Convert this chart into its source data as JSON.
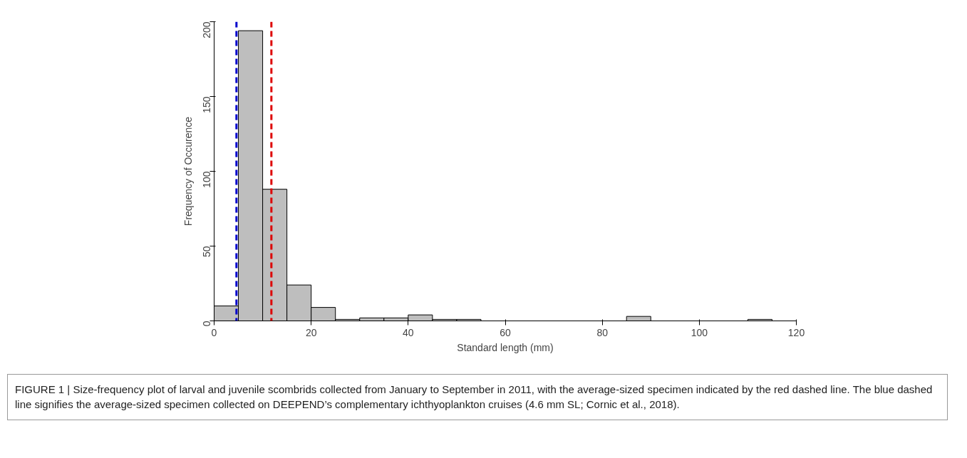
{
  "chart_data": {
    "type": "histogram",
    "bins": [
      0,
      5,
      10,
      15,
      20,
      25,
      30,
      35,
      40,
      45,
      50,
      55,
      60,
      65,
      70,
      75,
      80,
      85,
      90,
      95,
      100,
      105,
      110,
      115,
      120
    ],
    "values": [
      10,
      194,
      88,
      24,
      9,
      1,
      2,
      2,
      4,
      1,
      1,
      0,
      0,
      0,
      0,
      0,
      0,
      3,
      0,
      0,
      0,
      0,
      1,
      0
    ],
    "color": "#bebebe",
    "xlabel": "Standard length (mm)",
    "ylabel": "Frequency of Occurence",
    "xlim": [
      0,
      120
    ],
    "xticks": [
      0,
      20,
      40,
      60,
      80,
      100,
      120
    ],
    "ylim": [
      0,
      200
    ],
    "yticks": [
      0,
      50,
      100,
      150,
      200
    ],
    "grid": false,
    "ref_lines": [
      {
        "axis": "x",
        "value": 4.6,
        "color": "#0000cc",
        "line_style": "dashed"
      },
      {
        "axis": "x",
        "value": 11.8,
        "color": "#dd0000",
        "line_style": "dashed"
      }
    ],
    "annotations": [
      "FIGURE 1 | Size-frequency plot of larval and juvenile scombrids collected from January to September in 2011, with the average-sized specimen indicated by the red dashed line. The blue dashed line signifies the average-sized specimen collected on DEEPEND’s complementary ichthyoplankton cruises (4.6 mm SL; Cornic et al., 2018)."
    ]
  }
}
